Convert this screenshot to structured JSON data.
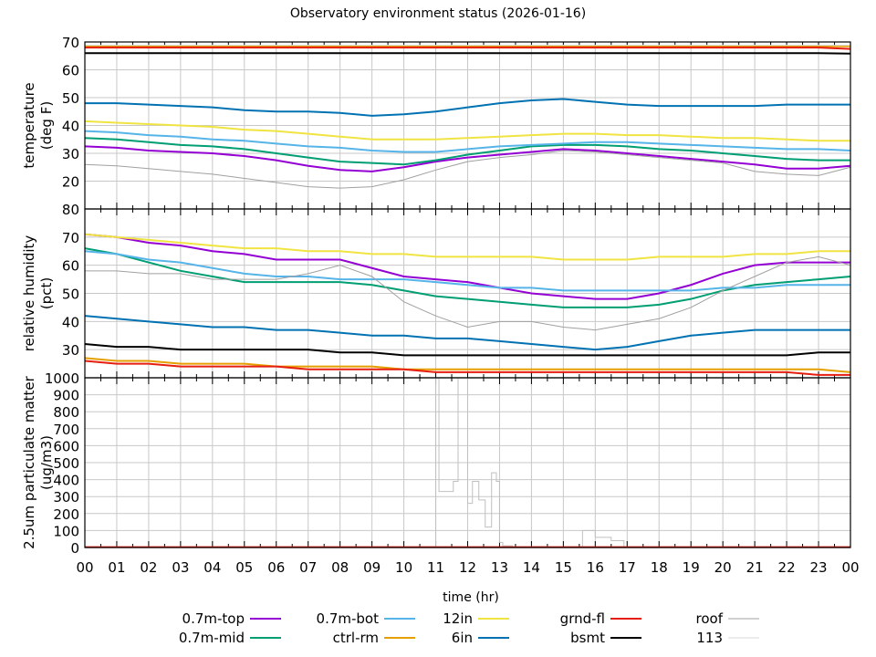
{
  "chart_data": [
    {
      "type": "line",
      "title": "Observatory environment status (2026-01-16)",
      "ylabel": "temperature",
      "ylabel2": "(deg F)",
      "ylim": [
        10,
        70
      ],
      "yticks": [
        20,
        30,
        40,
        50,
        60,
        70
      ],
      "x": [
        0,
        1,
        2,
        3,
        4,
        5,
        6,
        7,
        8,
        9,
        10,
        11,
        12,
        13,
        14,
        15,
        16,
        17,
        18,
        19,
        20,
        21,
        22,
        23,
        24
      ],
      "series": [
        {
          "name": "0.7m-top",
          "color": "#9400d3",
          "values": [
            32.5,
            32,
            31,
            30.5,
            30,
            29,
            27.5,
            25.5,
            24,
            23.5,
            25,
            27,
            28.5,
            29.5,
            30.5,
            31.5,
            31,
            30,
            29,
            28,
            27,
            26,
            24.5,
            24.5,
            25.5
          ]
        },
        {
          "name": "0.7m-mid",
          "color": "#009e73",
          "values": [
            35.5,
            35,
            34,
            33,
            32.5,
            31.5,
            30,
            28.5,
            27,
            26.5,
            26,
            27.5,
            29.5,
            31,
            32.5,
            33,
            33,
            32.5,
            31.5,
            31,
            30,
            29,
            28,
            27.5,
            27.5
          ]
        },
        {
          "name": "0.7m-bot",
          "color": "#56b4e9",
          "values": [
            38,
            37.5,
            36.5,
            36,
            35,
            34.5,
            33.5,
            32.5,
            32,
            31,
            30.5,
            30.5,
            31.5,
            32.5,
            33,
            33.5,
            34,
            34,
            33.5,
            33,
            32.5,
            32,
            31.5,
            31.5,
            31
          ]
        },
        {
          "name": "ctrl-rm",
          "color": "#e69f00",
          "values": [
            68.5,
            68.5,
            68.5,
            68.5,
            68.5,
            68.5,
            68.5,
            68.5,
            68.5,
            68.5,
            68.5,
            68.5,
            68.5,
            68.5,
            68.5,
            68.5,
            68.5,
            68.5,
            68.5,
            68.5,
            68.5,
            68.5,
            68.5,
            68.5,
            68.5
          ]
        },
        {
          "name": "12in",
          "color": "#f0e442",
          "values": [
            41.5,
            41,
            40.5,
            40,
            39.5,
            38.5,
            38,
            37,
            36,
            35,
            35,
            35,
            35.5,
            36,
            36.5,
            37,
            37,
            36.5,
            36.5,
            36,
            35.5,
            35.5,
            35,
            34.5,
            34.5
          ]
        },
        {
          "name": "6in",
          "color": "#0072b2",
          "values": [
            48,
            48,
            47.5,
            47,
            46.5,
            45.5,
            45,
            45,
            44.5,
            43.5,
            44,
            45,
            46.5,
            48,
            49,
            49.5,
            48.5,
            47.5,
            47,
            47,
            47,
            47,
            47.5,
            47.5,
            47.5
          ]
        },
        {
          "name": "grnd-fl",
          "color": "#e51e10",
          "values": [
            68,
            68,
            68,
            68,
            68,
            68,
            68,
            68,
            68,
            68,
            68,
            68,
            68,
            68,
            68,
            68,
            68,
            68,
            68,
            68,
            68,
            68,
            68,
            68,
            67.5
          ]
        },
        {
          "name": "bsmt",
          "color": "#000000",
          "values": [
            66,
            66,
            66,
            66,
            66,
            66,
            66,
            66,
            66,
            66,
            66,
            66,
            66,
            66,
            66,
            66,
            66,
            66,
            66,
            66,
            66,
            66,
            66,
            66,
            65.8
          ]
        },
        {
          "name": "roof",
          "color": "#a0a0a0",
          "values": [
            26,
            25.5,
            24.5,
            23.5,
            22.5,
            21,
            19.5,
            18,
            17.5,
            18,
            20.5,
            24,
            27,
            28.5,
            29.5,
            31,
            30.5,
            29.5,
            28.5,
            27.5,
            26.5,
            23.5,
            22.5,
            22,
            25
          ]
        },
        {
          "name": "113",
          "color": "#d8d8d8",
          "values": [
            68.8,
            68.8,
            68.8,
            68.8,
            68.8,
            68.8,
            68.8,
            68.8,
            68.8,
            68.8,
            68.8,
            68.8,
            68.8,
            68.8,
            68.8,
            68.8,
            68.8,
            68.8,
            68.8,
            68.8,
            68.8,
            68.8,
            68.8,
            68.8,
            68.8
          ]
        }
      ]
    },
    {
      "type": "line",
      "ylabel": "relative humidity",
      "ylabel2": "(pct)",
      "ylim": [
        20,
        80
      ],
      "yticks": [
        30,
        40,
        50,
        60,
        70,
        80
      ],
      "x": [
        0,
        1,
        2,
        3,
        4,
        5,
        6,
        7,
        8,
        9,
        10,
        11,
        12,
        13,
        14,
        15,
        16,
        17,
        18,
        19,
        20,
        21,
        22,
        23,
        24
      ],
      "series": [
        {
          "name": "0.7m-top",
          "color": "#9400d3",
          "values": [
            71,
            70,
            68,
            67,
            65,
            64,
            62,
            62,
            62,
            59,
            56,
            55,
            54,
            52,
            50,
            49,
            48,
            48,
            50,
            53,
            57,
            60,
            61,
            61,
            61
          ]
        },
        {
          "name": "0.7m-mid",
          "color": "#009e73",
          "values": [
            66,
            64,
            61,
            58,
            56,
            54,
            54,
            54,
            54,
            53,
            51,
            49,
            48,
            47,
            46,
            45,
            45,
            45,
            46,
            48,
            51,
            53,
            54,
            55,
            56
          ]
        },
        {
          "name": "0.7m-bot",
          "color": "#56b4e9",
          "values": [
            65,
            64,
            62,
            61,
            59,
            57,
            56,
            56,
            55,
            55,
            55,
            54,
            53,
            52,
            52,
            51,
            51,
            51,
            51,
            51,
            52,
            52,
            53,
            53,
            53
          ]
        },
        {
          "name": "ctrl-rm",
          "color": "#e69f00",
          "values": [
            27,
            26,
            26,
            25,
            25,
            25,
            24,
            24,
            24,
            24,
            23,
            23,
            23,
            23,
            23,
            23,
            23,
            23,
            23,
            23,
            23,
            23,
            23,
            23,
            22
          ]
        },
        {
          "name": "12in",
          "color": "#f0e442",
          "values": [
            71,
            70,
            69,
            68,
            67,
            66,
            66,
            65,
            65,
            64,
            64,
            63,
            63,
            63,
            63,
            62,
            62,
            62,
            63,
            63,
            63,
            64,
            64,
            65,
            65
          ]
        },
        {
          "name": "6in",
          "color": "#0072b2",
          "values": [
            42,
            41,
            40,
            39,
            38,
            38,
            37,
            37,
            36,
            35,
            35,
            34,
            34,
            33,
            32,
            31,
            30,
            31,
            33,
            35,
            36,
            37,
            37,
            37,
            37
          ]
        },
        {
          "name": "grnd-fl",
          "color": "#e51e10",
          "values": [
            26,
            25,
            25,
            24,
            24,
            24,
            24,
            23,
            23,
            23,
            23,
            22,
            22,
            22,
            22,
            22,
            22,
            22,
            22,
            22,
            22,
            22,
            22,
            21,
            21
          ]
        },
        {
          "name": "bsmt",
          "color": "#000000",
          "values": [
            32,
            31,
            31,
            30,
            30,
            30,
            30,
            30,
            29,
            29,
            28,
            28,
            28,
            28,
            28,
            28,
            28,
            28,
            28,
            28,
            28,
            28,
            28,
            29,
            29
          ]
        },
        {
          "name": "roof",
          "color": "#a0a0a0",
          "values": [
            58,
            58,
            57,
            57,
            55,
            55,
            55,
            57,
            60,
            56,
            47,
            42,
            38,
            40,
            40,
            38,
            37,
            39,
            41,
            45,
            51,
            56,
            61,
            63,
            60
          ]
        }
      ]
    },
    {
      "type": "line",
      "ylabel": "2.5um particulate matter",
      "ylabel2": "(ug/m3)",
      "ylim": [
        0,
        1000
      ],
      "yticks": [
        0,
        100,
        200,
        300,
        400,
        500,
        600,
        700,
        800,
        900,
        1000
      ],
      "series": [
        {
          "name": "113",
          "color": "#c0c0c0",
          "x": [
            0,
            10.95,
            11.0,
            11.1,
            11.55,
            11.7,
            11.9,
            12.0,
            12.15,
            12.35,
            12.55,
            12.75,
            12.9,
            13.0,
            13.1,
            13.4,
            14.0,
            14.5,
            15.4,
            15.6,
            16.0,
            16.5,
            16.9,
            24
          ],
          "values": [
            0,
            0,
            1000,
            330,
            390,
            1000,
            1000,
            260,
            390,
            280,
            120,
            440,
            390,
            30,
            10,
            0,
            5,
            0,
            0,
            100,
            60,
            40,
            0,
            0
          ]
        },
        {
          "name": "grnd-fl",
          "color": "#e51e10",
          "x": [
            0,
            24
          ],
          "values": [
            2,
            2
          ]
        }
      ]
    }
  ],
  "xaxis": {
    "label": "time (hr)",
    "ticks": [
      "00",
      "01",
      "02",
      "03",
      "04",
      "05",
      "06",
      "07",
      "08",
      "09",
      "10",
      "11",
      "12",
      "13",
      "14",
      "15",
      "16",
      "17",
      "18",
      "19",
      "20",
      "21",
      "22",
      "23",
      "00"
    ]
  },
  "legend": [
    {
      "name": "0.7m-top",
      "color": "#9400d3"
    },
    {
      "name": "0.7m-bot",
      "color": "#56b4e9"
    },
    {
      "name": "12in",
      "color": "#f0e442"
    },
    {
      "name": "grnd-fl",
      "color": "#e51e10"
    },
    {
      "name": "roof",
      "color": "#a0a0a0"
    },
    {
      "name": "0.7m-mid",
      "color": "#009e73"
    },
    {
      "name": "ctrl-rm",
      "color": "#e69f00"
    },
    {
      "name": "6in",
      "color": "#0072b2"
    },
    {
      "name": "bsmt",
      "color": "#000000"
    },
    {
      "name": "113",
      "color": "#d8d8d8"
    }
  ]
}
